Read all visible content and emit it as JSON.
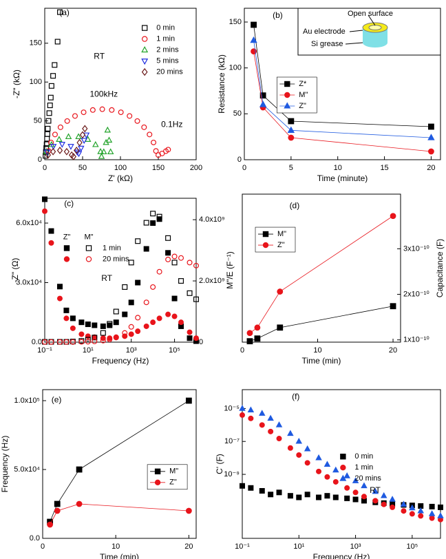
{
  "chart_data": [
    {
      "type": "scatter",
      "x_label": "Z' (kΩ)",
      "y_label": "-Z\" (kΩ)",
      "xlim": [
        0,
        200
      ],
      "xticks": [
        0,
        50,
        100,
        150,
        200
      ],
      "ylim": [
        0,
        195
      ],
      "yticks": [
        0,
        50,
        100,
        150
      ],
      "legend": "upper right",
      "annotations": [
        "(a)",
        "RT",
        "100kHz",
        "0.1Hz"
      ],
      "series": [
        {
          "name": "0 min",
          "color": "#000000",
          "marker": "square",
          "filled": false,
          "x": [
            1,
            1.5,
            2,
            2.5,
            3,
            3.5,
            4,
            5,
            6,
            7,
            8,
            9,
            11,
            13,
            17,
            20
          ],
          "values": [
            5,
            10,
            15,
            20,
            27,
            33,
            40,
            50,
            60,
            70,
            80,
            95,
            108,
            122,
            152,
            190
          ]
        },
        {
          "name": "1 min",
          "color": "#e8141b",
          "marker": "circle",
          "filled": false,
          "x": [
            5.1,
            8.3,
            13.6,
            20.8,
            29.7,
            40,
            51.4,
            63.5,
            76,
            88.5,
            100.6,
            112,
            122.3,
            131.2,
            138.4,
            143.7,
            146.9,
            150,
            155,
            160,
            163
          ],
          "values": [
            11.3,
            22.2,
            32.5,
            41.8,
            49.8,
            56.3,
            61.1,
            64,
            65,
            64,
            61.1,
            56.3,
            49.8,
            41.8,
            32.5,
            22.2,
            11.3,
            6,
            8,
            11,
            13
          ]
        },
        {
          "name": "2 mins",
          "color": "#22a32a",
          "marker": "triangle",
          "filled": false,
          "x": [
            2.3,
            8.9,
            19,
            31.4,
            44.6,
            57,
            67.1,
            73.7,
            75,
            78,
            81,
            83,
            85,
            87
          ],
          "values": [
            10.3,
            19.3,
            26,
            29.5,
            29.5,
            26,
            19.3,
            10.3,
            4,
            10,
            22,
            38,
            25,
            10
          ]
        },
        {
          "name": "5 mins",
          "color": "#1f2de0",
          "marker": "triangle-down",
          "filled": false,
          "x": [
            3.1,
            11.5,
            23,
            34.5,
            42.9,
            45,
            48,
            52,
            55
          ],
          "values": [
            10,
            17.3,
            20,
            17.3,
            10,
            8,
            15,
            25,
            32
          ]
        },
        {
          "name": "20 mins",
          "color": "#6b1a1a",
          "marker": "diamond",
          "filled": false,
          "x": [
            4.4,
            11,
            20,
            29,
            35.6,
            38,
            42,
            46,
            50,
            53
          ],
          "values": [
            6,
            10.4,
            12,
            10.4,
            6,
            4,
            12,
            22,
            32,
            40
          ]
        }
      ]
    },
    {
      "type": "line",
      "x_label": "Time (minute)",
      "y_label": "Resistance (kΩ)",
      "x": [
        1,
        2,
        5,
        20
      ],
      "xlim": [
        0,
        21
      ],
      "xticks": [
        0,
        5,
        10,
        15,
        20
      ],
      "ylim": [
        0,
        165
      ],
      "yticks": [
        0,
        50,
        100,
        150
      ],
      "legend": "center left",
      "legend_frame": true,
      "annotations": [
        "(b)"
      ],
      "inset_labels": [
        "Open surface",
        "Au electrode",
        "Si grease"
      ],
      "series": [
        {
          "name": "Z*",
          "color": "#000000",
          "marker": "square",
          "filled": true,
          "values": [
            147,
            70,
            42,
            36
          ]
        },
        {
          "name": "M\"",
          "color": "#e8141b",
          "marker": "circle",
          "filled": true,
          "values": [
            118,
            57,
            24,
            9
          ]
        },
        {
          "name": "Z\"",
          "color": "#1f5ae0",
          "marker": "triangle",
          "filled": true,
          "values": [
            130,
            60,
            32,
            24
          ]
        }
      ]
    },
    {
      "type": "scatter",
      "x_label": "Frequency (Hz)",
      "y_label": "-Z\" (Ω)",
      "y2_label": "M\"/E (F⁻¹)",
      "xscale": "log",
      "x": [
        0.1,
        0.2,
        0.5,
        1,
        2,
        5,
        10,
        20,
        50,
        100,
        200,
        500,
        1000,
        2000,
        5000,
        10000,
        20000,
        50000,
        100000,
        200000,
        500000,
        1000000
      ],
      "xlim": [
        0.1,
        1000000
      ],
      "xticks": [
        {
          "value": 0.1,
          "label": "10⁻¹"
        },
        {
          "value": 10,
          "label": "10¹"
        },
        {
          "value": 1000,
          "label": "10³"
        },
        {
          "value": 100000,
          "label": "10⁵"
        }
      ],
      "ylim": [
        0,
        72500
      ],
      "yticks": [
        {
          "value": 0,
          "label": "0.0"
        },
        {
          "value": 30000,
          "label": "3.0x10⁴"
        },
        {
          "value": 60000,
          "label": "6.0x10⁴"
        }
      ],
      "y2lim": [
        0,
        4700000000
      ],
      "y2ticks": [
        0,
        {
          "value": 2000000000,
          "label": "2.0x10⁹"
        },
        {
          "value": 4000000000,
          "label": "4.0x10⁹"
        }
      ],
      "legend": "upper left",
      "legend_columns": [
        "Z\"",
        "M\""
      ],
      "legend_rows": [
        "1 min",
        "20 mins"
      ],
      "annotations": [
        "(c)",
        "RT"
      ],
      "series": [
        {
          "row": 0,
          "column": 0,
          "color": "#000000",
          "marker": "square",
          "filled": true,
          "values": [
            72000,
            56000,
            28000,
            16000,
            12000,
            10000,
            9000,
            8500,
            8000,
            8500,
            10000,
            14000,
            20000,
            30000,
            47000,
            60000,
            62000,
            45000,
            22000,
            8000,
            2000,
            500
          ]
        },
        {
          "row": 1,
          "column": 0,
          "color": "#e8141b",
          "marker": "circle",
          "filled": true,
          "values": [
            66000,
            50000,
            22000,
            12000,
            7000,
            4000,
            3000,
            2500,
            2000,
            2000,
            2500,
            3000,
            4000,
            5500,
            8000,
            10000,
            12000,
            14000,
            13000,
            10000,
            5000,
            2000
          ]
        },
        {
          "row": 0,
          "column": 1,
          "color": "#000000",
          "marker": "square",
          "filled": false,
          "axis": "y2",
          "values": [
            10000000,
            10000000,
            10000000,
            10000000,
            20000000,
            40000000,
            80000000,
            150000000,
            300000000,
            600000000,
            1000000000,
            1800000000,
            2600000000,
            3300000000,
            3900000000,
            4200000000,
            4100000000,
            3400000000,
            2600000000,
            2000000000,
            1600000000,
            1400000000
          ]
        },
        {
          "row": 1,
          "column": 1,
          "color": "#e8141b",
          "marker": "circle",
          "filled": false,
          "axis": "y2",
          "values": [
            5000000,
            5000000,
            5000000,
            5000000,
            5000000,
            10000000,
            15000000,
            25000000,
            50000000,
            90000000,
            150000000,
            300000000,
            500000000,
            800000000,
            1300000000,
            1800000000,
            2300000000,
            2700000000,
            2800000000,
            2750000000,
            2600000000,
            2500000000
          ]
        }
      ]
    },
    {
      "type": "line",
      "x_label": "Time (min)",
      "y2_label": "Capacitance (F)",
      "x": [
        1,
        2,
        5,
        20
      ],
      "xlim": [
        0,
        21
      ],
      "xticks": [
        0,
        10,
        20
      ],
      "y2lim": [
        9.5e-11,
        4.2e-10
      ],
      "y2ticks": [
        {
          "value": 1e-10,
          "label": "1x10⁻¹⁰"
        },
        {
          "value": 2e-10,
          "label": "2x10⁻¹⁰"
        },
        {
          "value": 3e-10,
          "label": "3x10⁻¹⁰"
        }
      ],
      "legend": "upper left",
      "legend_frame": true,
      "annotations": [
        "(d)"
      ],
      "series": [
        {
          "name": "M\"",
          "color": "#000000",
          "marker": "square",
          "filled": true,
          "axis": "y2",
          "values": [
            9.7e-11,
            1.03e-10,
            1.27e-10,
            1.74e-10
          ]
        },
        {
          "name": "Z\"",
          "color": "#e8141b",
          "marker": "circle",
          "filled": true,
          "axis": "y2",
          "values": [
            1.15e-10,
            1.27e-10,
            2.06e-10,
            3.72e-10
          ]
        }
      ]
    },
    {
      "type": "line",
      "x_label": "Time (min)",
      "y_label": "Frequency (Hz)",
      "x": [
        1,
        2,
        5,
        20
      ],
      "xlim": [
        0,
        21
      ],
      "xticks": [
        0,
        10,
        20
      ],
      "ylim": [
        0,
        108000
      ],
      "yticks": [
        {
          "value": 0,
          "label": "0.0"
        },
        {
          "value": 50000,
          "label": "5.0x10⁴"
        },
        {
          "value": 100000,
          "label": "1.0x10⁵"
        }
      ],
      "legend": "center right",
      "legend_frame": true,
      "annotations": [
        "(e)"
      ],
      "series": [
        {
          "name": "M\"",
          "color": "#000000",
          "marker": "square",
          "filled": true,
          "values": [
            12000,
            25000,
            50000,
            100000
          ]
        },
        {
          "name": "Z\"",
          "color": "#e8141b",
          "marker": "circle",
          "filled": true,
          "values": [
            10000,
            20000,
            25000,
            20000
          ]
        }
      ]
    },
    {
      "type": "scatter",
      "x_label": "Frequency (Hz)",
      "y_label": "C' (F)",
      "xscale": "log",
      "yscale": "log",
      "x": [
        0.1,
        0.2,
        0.5,
        1,
        2,
        5,
        10,
        20,
        50,
        100,
        200,
        500,
        1000,
        2000,
        5000,
        10000,
        20000,
        50000,
        100000,
        200000,
        500000,
        1000000
      ],
      "xlim": [
        0.1,
        1000000
      ],
      "xticks": [
        {
          "value": 0.1,
          "label": "10⁻¹"
        },
        {
          "value": 10,
          "label": "10¹"
        },
        {
          "value": 1000,
          "label": "10³"
        },
        {
          "value": 100000,
          "label": "10⁵"
        }
      ],
      "ylim": [
        1.3e-13,
        0.00014
      ],
      "yticks": [
        {
          "value": 1e-09,
          "label": "10⁻⁹"
        },
        {
          "value": 1e-07,
          "label": "10⁻⁷"
        },
        {
          "value": 1e-05,
          "label": "10⁻⁵"
        }
      ],
      "legend": "center",
      "annotations": [
        "(f)",
        "RT"
      ],
      "series": [
        {
          "name": "0 min",
          "color": "#000000",
          "marker": "square",
          "filled": true,
          "values": [
            2e-10,
            1.5e-10,
            1e-10,
            6e-11,
            8e-11,
            5e-11,
            4e-11,
            6e-11,
            4e-11,
            5e-11,
            4e-11,
            3.5e-11,
            3e-11,
            2.5e-11,
            2e-11,
            1.8e-11,
            1.6e-11,
            1.4e-11,
            1.3e-11,
            1.2e-11,
            1.1e-11,
            1e-11
          ]
        },
        {
          "name": "1 min",
          "color": "#e8141b",
          "marker": "circle",
          "filled": true,
          "values": [
            4e-06,
            2.5e-06,
            1e-06,
            4e-07,
            1.5e-07,
            4e-08,
            1.5e-08,
            5e-09,
            1.5e-09,
            7e-10,
            3.5e-10,
            1.5e-10,
            8e-11,
            4.5e-11,
            2.5e-11,
            1.5e-11,
            1e-11,
            6e-12,
            4e-12,
            3e-12,
            2.2e-12,
            1.8e-12
          ]
        },
        {
          "name": "20 mins",
          "color": "#1f5ae0",
          "marker": "triangle",
          "filled": true,
          "values": [
            1e-05,
            8e-06,
            5e-06,
            2.5e-06,
            1e-06,
            3e-07,
            1e-07,
            3.5e-08,
            1e-08,
            4e-09,
            1.8e-09,
            8e-10,
            4e-10,
            2e-10,
            9e-11,
            5e-11,
            3e-11,
            1.5e-11,
            9e-12,
            6e-12,
            4e-12,
            3e-12
          ]
        }
      ]
    }
  ]
}
